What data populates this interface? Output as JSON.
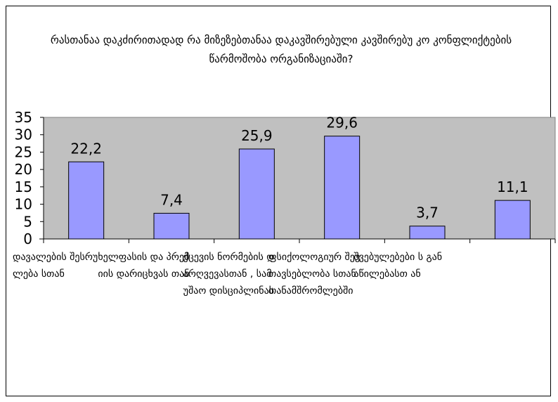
{
  "chart_data": {
    "type": "bar",
    "title": "რასთანაა დაკძირითადად რა მიზეზებთანაა დაკავშირებული კავშირებუ კო   კონფლიქტების წარმოშობა ორგანიზაციაში?",
    "categories": [
      "დავალების შესრულება სთან",
      "ხელფასის და პრემიის დარიცხვას თან",
      "ქცევის ნორმების დარღვევასთან , სამუშაო დისციპლინას",
      "ფსიქოლოგიურ შეუთავსებლობა სთან თანამშრომლებში",
      "შვებულებები ს განაწილებასთ ან",
      ""
    ],
    "values": [
      22.2,
      7.4,
      25.9,
      29.6,
      3.7,
      11.1
    ],
    "value_labels": [
      "22,2",
      "7,4",
      "25,9",
      "29,6",
      "3,7",
      "11,1"
    ],
    "yticks": [
      "35",
      "30",
      "25",
      "20",
      "15",
      "10",
      "5",
      "0"
    ],
    "ylim": [
      0,
      35
    ],
    "bar_color": "#9999ff",
    "plot_bg": "#c0c0c0",
    "grid": false
  }
}
